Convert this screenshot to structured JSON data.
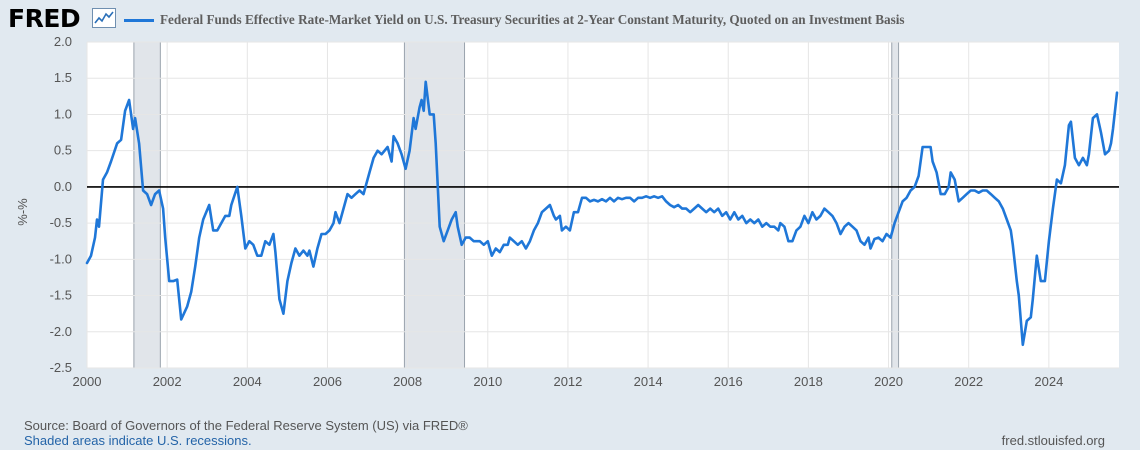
{
  "brand": {
    "logo_text": "FRED",
    "logo_icon": "chart-line-icon"
  },
  "legend": {
    "label": "Federal Funds Effective Rate-Market Yield on U.S. Treasury Securities at 2-Year Constant Maturity, Quoted on an Investment Basis",
    "color": "#1f77d8"
  },
  "footer": {
    "source": "Source: Board of Governors of the Federal Reserve System (US) via FRED®",
    "note": "Shaded areas indicate U.S. recessions.",
    "site": "fred.stlouisfed.org"
  },
  "chart_data": {
    "type": "line",
    "ylabel": "%-%",
    "ylim": [
      -2.5,
      2.0
    ],
    "xlim": [
      2000.0,
      2025.75
    ],
    "y_ticks": [
      "2.0",
      "1.5",
      "1.0",
      "0.5",
      "0.0",
      "-0.5",
      "-1.0",
      "-1.5",
      "-2.0",
      "-2.5"
    ],
    "x_ticks": [
      "2000",
      "2002",
      "2004",
      "2006",
      "2008",
      "2010",
      "2012",
      "2014",
      "2016",
      "2018",
      "2020",
      "2022",
      "2024"
    ],
    "grid": true,
    "zero_line": true,
    "recessions": [
      [
        2001.17,
        2001.83
      ],
      [
        2007.92,
        2009.42
      ],
      [
        2020.08,
        2020.25
      ]
    ],
    "series": [
      {
        "color": "#1f77d8",
        "points": [
          [
            2000.0,
            -1.05
          ],
          [
            2000.1,
            -0.95
          ],
          [
            2000.2,
            -0.7
          ],
          [
            2000.25,
            -0.45
          ],
          [
            2000.3,
            -0.55
          ],
          [
            2000.4,
            0.1
          ],
          [
            2000.5,
            0.2
          ],
          [
            2000.6,
            0.35
          ],
          [
            2000.75,
            0.6
          ],
          [
            2000.85,
            0.65
          ],
          [
            2000.95,
            1.05
          ],
          [
            2001.05,
            1.2
          ],
          [
            2001.15,
            0.8
          ],
          [
            2001.2,
            0.95
          ],
          [
            2001.3,
            0.6
          ],
          [
            2001.4,
            -0.05
          ],
          [
            2001.5,
            -0.1
          ],
          [
            2001.6,
            -0.25
          ],
          [
            2001.7,
            -0.1
          ],
          [
            2001.8,
            -0.05
          ],
          [
            2001.9,
            -0.3
          ],
          [
            2001.95,
            -0.7
          ],
          [
            2002.05,
            -1.3
          ],
          [
            2002.15,
            -1.3
          ],
          [
            2002.25,
            -1.28
          ],
          [
            2002.35,
            -1.83
          ],
          [
            2002.5,
            -1.65
          ],
          [
            2002.6,
            -1.45
          ],
          [
            2002.7,
            -1.1
          ],
          [
            2002.8,
            -0.7
          ],
          [
            2002.9,
            -0.45
          ],
          [
            2003.05,
            -0.25
          ],
          [
            2003.15,
            -0.6
          ],
          [
            2003.25,
            -0.6
          ],
          [
            2003.35,
            -0.5
          ],
          [
            2003.45,
            -0.4
          ],
          [
            2003.55,
            -0.4
          ],
          [
            2003.6,
            -0.25
          ],
          [
            2003.75,
            0.0
          ],
          [
            2003.85,
            -0.4
          ],
          [
            2003.95,
            -0.85
          ],
          [
            2004.05,
            -0.75
          ],
          [
            2004.15,
            -0.8
          ],
          [
            2004.25,
            -0.95
          ],
          [
            2004.35,
            -0.95
          ],
          [
            2004.45,
            -0.75
          ],
          [
            2004.55,
            -0.8
          ],
          [
            2004.65,
            -0.65
          ],
          [
            2004.7,
            -0.9
          ],
          [
            2004.8,
            -1.55
          ],
          [
            2004.9,
            -1.75
          ],
          [
            2005.0,
            -1.3
          ],
          [
            2005.1,
            -1.05
          ],
          [
            2005.2,
            -0.85
          ],
          [
            2005.3,
            -0.95
          ],
          [
            2005.4,
            -0.88
          ],
          [
            2005.5,
            -0.95
          ],
          [
            2005.55,
            -0.88
          ],
          [
            2005.65,
            -1.1
          ],
          [
            2005.75,
            -0.85
          ],
          [
            2005.85,
            -0.65
          ],
          [
            2005.95,
            -0.65
          ],
          [
            2006.05,
            -0.6
          ],
          [
            2006.15,
            -0.5
          ],
          [
            2006.2,
            -0.35
          ],
          [
            2006.3,
            -0.5
          ],
          [
            2006.45,
            -0.2
          ],
          [
            2006.5,
            -0.1
          ],
          [
            2006.6,
            -0.15
          ],
          [
            2006.7,
            -0.1
          ],
          [
            2006.8,
            -0.05
          ],
          [
            2006.9,
            -0.1
          ],
          [
            2006.95,
            0.0
          ],
          [
            2007.05,
            0.2
          ],
          [
            2007.15,
            0.4
          ],
          [
            2007.25,
            0.5
          ],
          [
            2007.35,
            0.45
          ],
          [
            2007.5,
            0.55
          ],
          [
            2007.6,
            0.35
          ],
          [
            2007.65,
            0.7
          ],
          [
            2007.75,
            0.6
          ],
          [
            2007.85,
            0.45
          ],
          [
            2007.95,
            0.25
          ],
          [
            2008.05,
            0.5
          ],
          [
            2008.15,
            0.95
          ],
          [
            2008.2,
            0.8
          ],
          [
            2008.3,
            1.1
          ],
          [
            2008.35,
            1.2
          ],
          [
            2008.4,
            1.05
          ],
          [
            2008.45,
            1.45
          ],
          [
            2008.55,
            1.0
          ],
          [
            2008.65,
            1.0
          ],
          [
            2008.7,
            0.6
          ],
          [
            2008.8,
            -0.55
          ],
          [
            2008.9,
            -0.75
          ],
          [
            2009.0,
            -0.6
          ],
          [
            2009.1,
            -0.45
          ],
          [
            2009.2,
            -0.35
          ],
          [
            2009.25,
            -0.55
          ],
          [
            2009.35,
            -0.8
          ],
          [
            2009.45,
            -0.7
          ],
          [
            2009.55,
            -0.7
          ],
          [
            2009.65,
            -0.75
          ],
          [
            2009.8,
            -0.75
          ],
          [
            2009.9,
            -0.8
          ],
          [
            2010.0,
            -0.75
          ],
          [
            2010.1,
            -0.95
          ],
          [
            2010.2,
            -0.85
          ],
          [
            2010.3,
            -0.9
          ],
          [
            2010.4,
            -0.8
          ],
          [
            2010.5,
            -0.8
          ],
          [
            2010.55,
            -0.7
          ],
          [
            2010.65,
            -0.75
          ],
          [
            2010.75,
            -0.8
          ],
          [
            2010.85,
            -0.75
          ],
          [
            2010.95,
            -0.85
          ],
          [
            2011.05,
            -0.75
          ],
          [
            2011.15,
            -0.6
          ],
          [
            2011.25,
            -0.5
          ],
          [
            2011.35,
            -0.35
          ],
          [
            2011.45,
            -0.3
          ],
          [
            2011.55,
            -0.25
          ],
          [
            2011.65,
            -0.4
          ],
          [
            2011.7,
            -0.45
          ],
          [
            2011.8,
            -0.4
          ],
          [
            2011.85,
            -0.6
          ],
          [
            2011.95,
            -0.55
          ],
          [
            2012.05,
            -0.6
          ],
          [
            2012.15,
            -0.35
          ],
          [
            2012.25,
            -0.35
          ],
          [
            2012.35,
            -0.15
          ],
          [
            2012.45,
            -0.15
          ],
          [
            2012.55,
            -0.2
          ],
          [
            2012.65,
            -0.18
          ],
          [
            2012.75,
            -0.2
          ],
          [
            2012.85,
            -0.17
          ],
          [
            2012.95,
            -0.2
          ],
          [
            2013.05,
            -0.15
          ],
          [
            2013.15,
            -0.2
          ],
          [
            2013.25,
            -0.15
          ],
          [
            2013.35,
            -0.17
          ],
          [
            2013.45,
            -0.15
          ],
          [
            2013.55,
            -0.15
          ],
          [
            2013.65,
            -0.2
          ],
          [
            2013.75,
            -0.15
          ],
          [
            2013.85,
            -0.15
          ],
          [
            2013.95,
            -0.13
          ],
          [
            2014.05,
            -0.15
          ],
          [
            2014.15,
            -0.13
          ],
          [
            2014.25,
            -0.15
          ],
          [
            2014.35,
            -0.13
          ],
          [
            2014.45,
            -0.2
          ],
          [
            2014.55,
            -0.25
          ],
          [
            2014.65,
            -0.28
          ],
          [
            2014.75,
            -0.25
          ],
          [
            2014.85,
            -0.3
          ],
          [
            2014.95,
            -0.3
          ],
          [
            2015.05,
            -0.35
          ],
          [
            2015.15,
            -0.3
          ],
          [
            2015.25,
            -0.25
          ],
          [
            2015.35,
            -0.3
          ],
          [
            2015.45,
            -0.35
          ],
          [
            2015.55,
            -0.3
          ],
          [
            2015.65,
            -0.35
          ],
          [
            2015.75,
            -0.3
          ],
          [
            2015.85,
            -0.4
          ],
          [
            2015.95,
            -0.35
          ],
          [
            2016.05,
            -0.45
          ],
          [
            2016.15,
            -0.35
          ],
          [
            2016.25,
            -0.45
          ],
          [
            2016.35,
            -0.4
          ],
          [
            2016.45,
            -0.5
          ],
          [
            2016.55,
            -0.45
          ],
          [
            2016.65,
            -0.5
          ],
          [
            2016.75,
            -0.45
          ],
          [
            2016.85,
            -0.55
          ],
          [
            2016.95,
            -0.5
          ],
          [
            2017.05,
            -0.55
          ],
          [
            2017.15,
            -0.55
          ],
          [
            2017.25,
            -0.6
          ],
          [
            2017.3,
            -0.5
          ],
          [
            2017.4,
            -0.55
          ],
          [
            2017.5,
            -0.75
          ],
          [
            2017.6,
            -0.75
          ],
          [
            2017.7,
            -0.6
          ],
          [
            2017.8,
            -0.55
          ],
          [
            2017.9,
            -0.4
          ],
          [
            2018.0,
            -0.5
          ],
          [
            2018.1,
            -0.35
          ],
          [
            2018.2,
            -0.45
          ],
          [
            2018.3,
            -0.4
          ],
          [
            2018.4,
            -0.3
          ],
          [
            2018.5,
            -0.35
          ],
          [
            2018.6,
            -0.4
          ],
          [
            2018.7,
            -0.5
          ],
          [
            2018.8,
            -0.65
          ],
          [
            2018.9,
            -0.55
          ],
          [
            2019.0,
            -0.5
          ],
          [
            2019.1,
            -0.55
          ],
          [
            2019.2,
            -0.6
          ],
          [
            2019.3,
            -0.75
          ],
          [
            2019.4,
            -0.8
          ],
          [
            2019.5,
            -0.7
          ],
          [
            2019.55,
            -0.85
          ],
          [
            2019.65,
            -0.72
          ],
          [
            2019.75,
            -0.7
          ],
          [
            2019.85,
            -0.75
          ],
          [
            2019.95,
            -0.65
          ],
          [
            2020.05,
            -0.7
          ],
          [
            2020.15,
            -0.5
          ],
          [
            2020.25,
            -0.35
          ],
          [
            2020.35,
            -0.2
          ],
          [
            2020.45,
            -0.15
          ],
          [
            2020.55,
            -0.05
          ],
          [
            2020.65,
            0.0
          ],
          [
            2020.75,
            0.15
          ],
          [
            2020.85,
            0.55
          ],
          [
            2020.95,
            0.55
          ],
          [
            2021.05,
            0.55
          ],
          [
            2021.1,
            0.35
          ],
          [
            2021.2,
            0.2
          ],
          [
            2021.3,
            -0.1
          ],
          [
            2021.4,
            -0.1
          ],
          [
            2021.5,
            0.0
          ],
          [
            2021.55,
            0.2
          ],
          [
            2021.65,
            0.1
          ],
          [
            2021.75,
            -0.2
          ],
          [
            2021.85,
            -0.15
          ],
          [
            2021.95,
            -0.1
          ],
          [
            2022.05,
            -0.05
          ],
          [
            2022.15,
            -0.05
          ],
          [
            2022.25,
            -0.08
          ],
          [
            2022.35,
            -0.05
          ],
          [
            2022.45,
            -0.05
          ],
          [
            2022.55,
            -0.1
          ],
          [
            2022.65,
            -0.15
          ],
          [
            2022.75,
            -0.2
          ],
          [
            2022.85,
            -0.3
          ],
          [
            2022.95,
            -0.45
          ],
          [
            2023.05,
            -0.6
          ],
          [
            2023.1,
            -0.8
          ],
          [
            2023.2,
            -1.3
          ],
          [
            2023.25,
            -1.5
          ],
          [
            2023.35,
            -2.18
          ],
          [
            2023.45,
            -1.85
          ],
          [
            2023.55,
            -1.8
          ],
          [
            2023.6,
            -1.55
          ],
          [
            2023.7,
            -0.95
          ],
          [
            2023.8,
            -1.3
          ],
          [
            2023.9,
            -1.3
          ],
          [
            2024.0,
            -0.75
          ],
          [
            2024.1,
            -0.3
          ],
          [
            2024.2,
            0.1
          ],
          [
            2024.3,
            0.05
          ],
          [
            2024.4,
            0.3
          ],
          [
            2024.5,
            0.85
          ],
          [
            2024.55,
            0.9
          ],
          [
            2024.65,
            0.4
          ],
          [
            2024.75,
            0.3
          ],
          [
            2024.85,
            0.4
          ],
          [
            2024.95,
            0.3
          ],
          [
            2025.0,
            0.45
          ],
          [
            2025.1,
            0.95
          ],
          [
            2025.2,
            1.0
          ],
          [
            2025.3,
            0.75
          ],
          [
            2025.4,
            0.45
          ],
          [
            2025.5,
            0.5
          ],
          [
            2025.55,
            0.6
          ],
          [
            2025.6,
            0.8
          ],
          [
            2025.65,
            1.05
          ],
          [
            2025.7,
            1.3
          ]
        ]
      }
    ]
  }
}
